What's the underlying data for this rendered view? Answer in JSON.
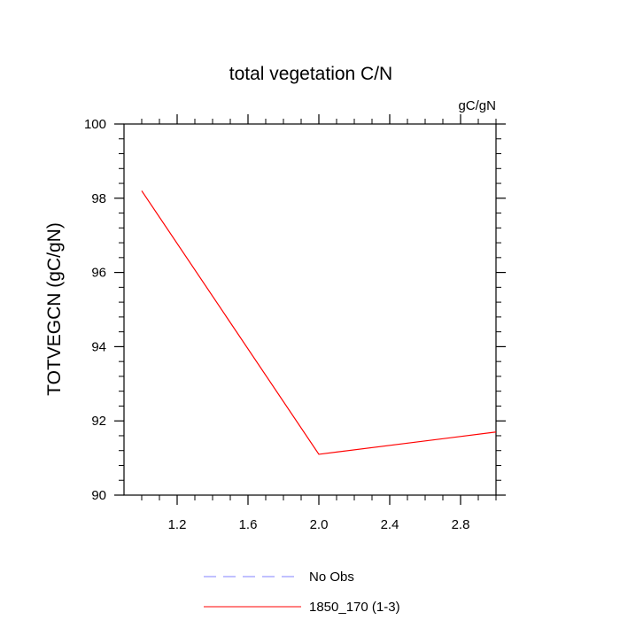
{
  "chart_data": {
    "type": "line",
    "title": "total vegetation C/N",
    "units_label": "gC/gN",
    "xlabel": "",
    "ylabel": "TOTVEGCN  (gC/gN)",
    "xlim": [
      0.9,
      3.0
    ],
    "ylim": [
      90,
      100
    ],
    "x_ticks": [
      1.2,
      1.6,
      2.0,
      2.4,
      2.8
    ],
    "x_tick_labels": [
      "1.2",
      "1.6",
      "2.0",
      "2.4",
      "2.8"
    ],
    "y_ticks": [
      90,
      92,
      94,
      96,
      98,
      100
    ],
    "y_tick_labels": [
      "90",
      "92",
      "94",
      "96",
      "98",
      "100"
    ],
    "grid": false,
    "legend_position": "bottom",
    "series": [
      {
        "name": "1850_170 (1-3)",
        "color": "#ff0000",
        "dash": "solid",
        "x": [
          1.0,
          2.0,
          3.0
        ],
        "y": [
          98.2,
          91.1,
          91.7
        ]
      }
    ],
    "legend": [
      {
        "name": "No Obs",
        "color": "#8080ff",
        "dash": "dashed"
      },
      {
        "name": "1850_170 (1-3)",
        "color": "#ff0000",
        "dash": "solid"
      }
    ]
  }
}
